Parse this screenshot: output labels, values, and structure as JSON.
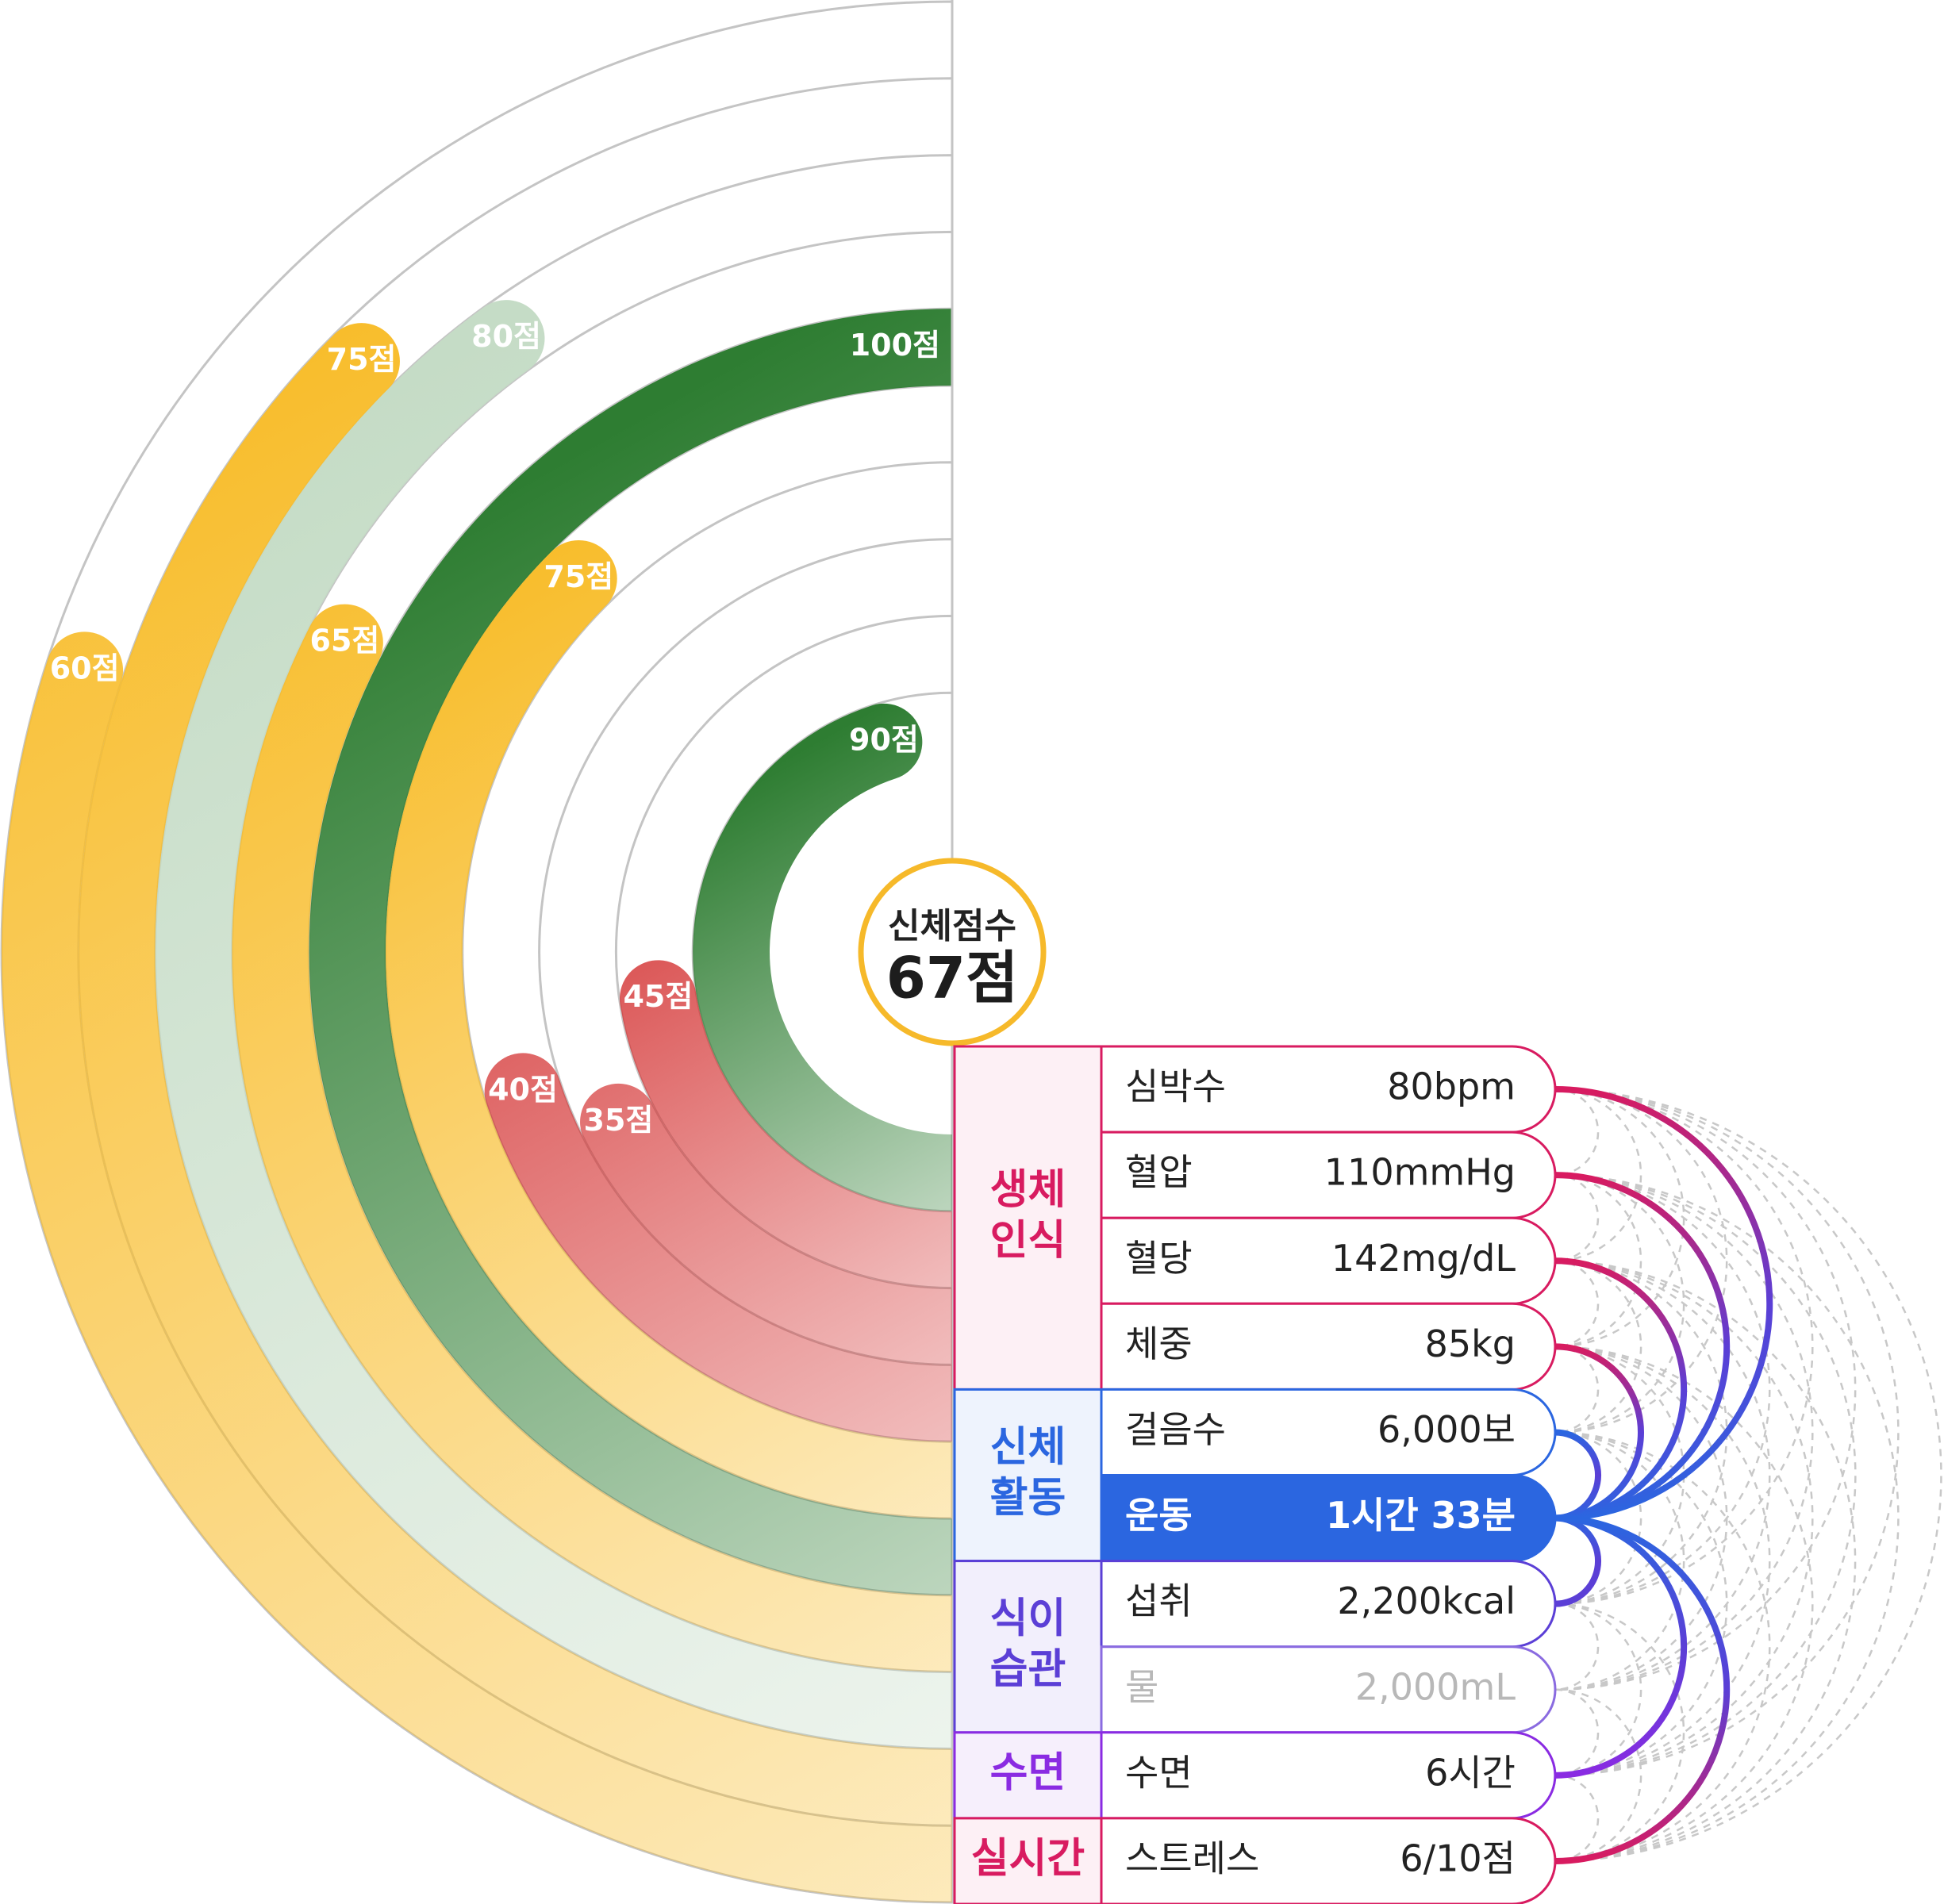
{
  "chart_data": {
    "type": "radial_bar",
    "center": {
      "title": "신체점수",
      "value": "67점"
    },
    "max_score": 100,
    "rings": [
      {
        "label": "60점",
        "value": 60,
        "color": "#f8bd2c"
      },
      {
        "label": "75점",
        "value": 75,
        "color": "#f8bd2c"
      },
      {
        "label": "80점",
        "value": 80,
        "color": "#c5dcc6"
      },
      {
        "label": "65점",
        "value": 65,
        "color": "#f8bd2c"
      },
      {
        "label": "100점",
        "value": 100,
        "color": "#2e7d32"
      },
      {
        "label": "75점",
        "value": 75,
        "color": "#f8bd2c"
      },
      {
        "label": "40점",
        "value": 40,
        "color": "#d32f2f"
      },
      {
        "label": "35점",
        "value": 35,
        "color": "#d32f2f"
      },
      {
        "label": "45점",
        "value": 45,
        "color": "#d32f2f"
      },
      {
        "label": "90점",
        "value": 90,
        "color": "#2e7d32"
      }
    ],
    "categories": [
      {
        "label": [
          "생체",
          "인식"
        ],
        "color": "#d81b60",
        "bg": "#fdf0f5",
        "rows": 4
      },
      {
        "label": [
          "신체",
          "활동"
        ],
        "color": "#2b66e0",
        "bg": "#eef3fd",
        "rows": 2
      },
      {
        "label": [
          "식이",
          "습관"
        ],
        "color": "#5b3fd6",
        "bg": "#f2effc",
        "rows": 2
      },
      {
        "label": [
          "수면"
        ],
        "color": "#8a2be2",
        "bg": "#f6effc",
        "rows": 1
      },
      {
        "label": [
          "실시간"
        ],
        "color": "#d81b60",
        "bg": "#fdf0f5",
        "rows": 1
      }
    ],
    "items": [
      {
        "name": "심박수",
        "value": "80bpm",
        "color": "#d81b60"
      },
      {
        "name": "혈압",
        "value": "110mmHg",
        "color": "#d81b60"
      },
      {
        "name": "혈당",
        "value": "142mg/dL",
        "color": "#d81b60"
      },
      {
        "name": "체중",
        "value": "85kg",
        "color": "#d81b60"
      },
      {
        "name": "걸음수",
        "value": "6,000보",
        "color": "#2b66e0"
      },
      {
        "name": "운동",
        "value": "1시간 33분",
        "color": "#2b66e0",
        "highlight": true
      },
      {
        "name": "섭취",
        "value": "2,200kcal",
        "color": "#5b3fd6"
      },
      {
        "name": "물",
        "value": "2,000mL",
        "color": "#8a6be0",
        "dim": true
      },
      {
        "name": "수면",
        "value": "6시간",
        "color": "#8a2be2"
      },
      {
        "name": "스트레스",
        "value": "6/10점",
        "color": "#d81b60"
      }
    ],
    "highlight_item": "운동",
    "highlight_color": "#2b66e0"
  }
}
